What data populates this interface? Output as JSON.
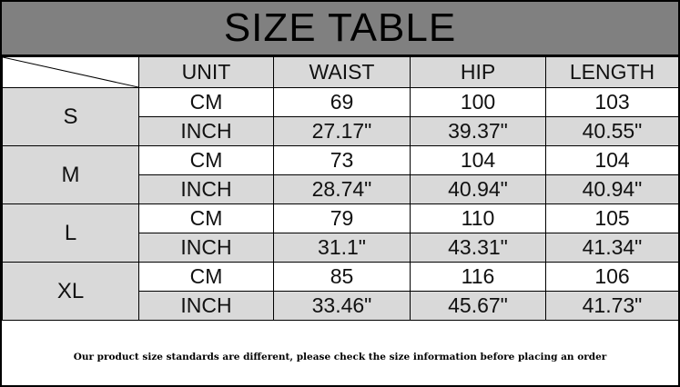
{
  "title": "SIZE TABLE",
  "columns": [
    "UNIT",
    "WAIST",
    "HIP",
    "LENGTH"
  ],
  "sizes": [
    {
      "size": "S",
      "rows": [
        [
          "CM",
          "69",
          "100",
          "103"
        ],
        [
          "INCH",
          "27.17\"",
          "39.37\"",
          "40.55\""
        ]
      ]
    },
    {
      "size": "M",
      "rows": [
        [
          "CM",
          "73",
          "104",
          "104"
        ],
        [
          "INCH",
          "28.74\"",
          "40.94\"",
          "40.94\""
        ]
      ]
    },
    {
      "size": "L",
      "rows": [
        [
          "CM",
          "79",
          "110",
          "105"
        ],
        [
          "INCH",
          "31.1\"",
          "43.31\"",
          "41.34\""
        ]
      ]
    },
    {
      "size": "XL",
      "rows": [
        [
          "CM",
          "85",
          "116",
          "106"
        ],
        [
          "INCH",
          "33.46\"",
          "45.67\"",
          "41.73\""
        ]
      ]
    }
  ],
  "note": "Our product size standards are different, please check the size information before placing an order",
  "colors": {
    "title_bg": "#808080",
    "shaded_cell": "#d9d9d9",
    "border": "#000000"
  }
}
